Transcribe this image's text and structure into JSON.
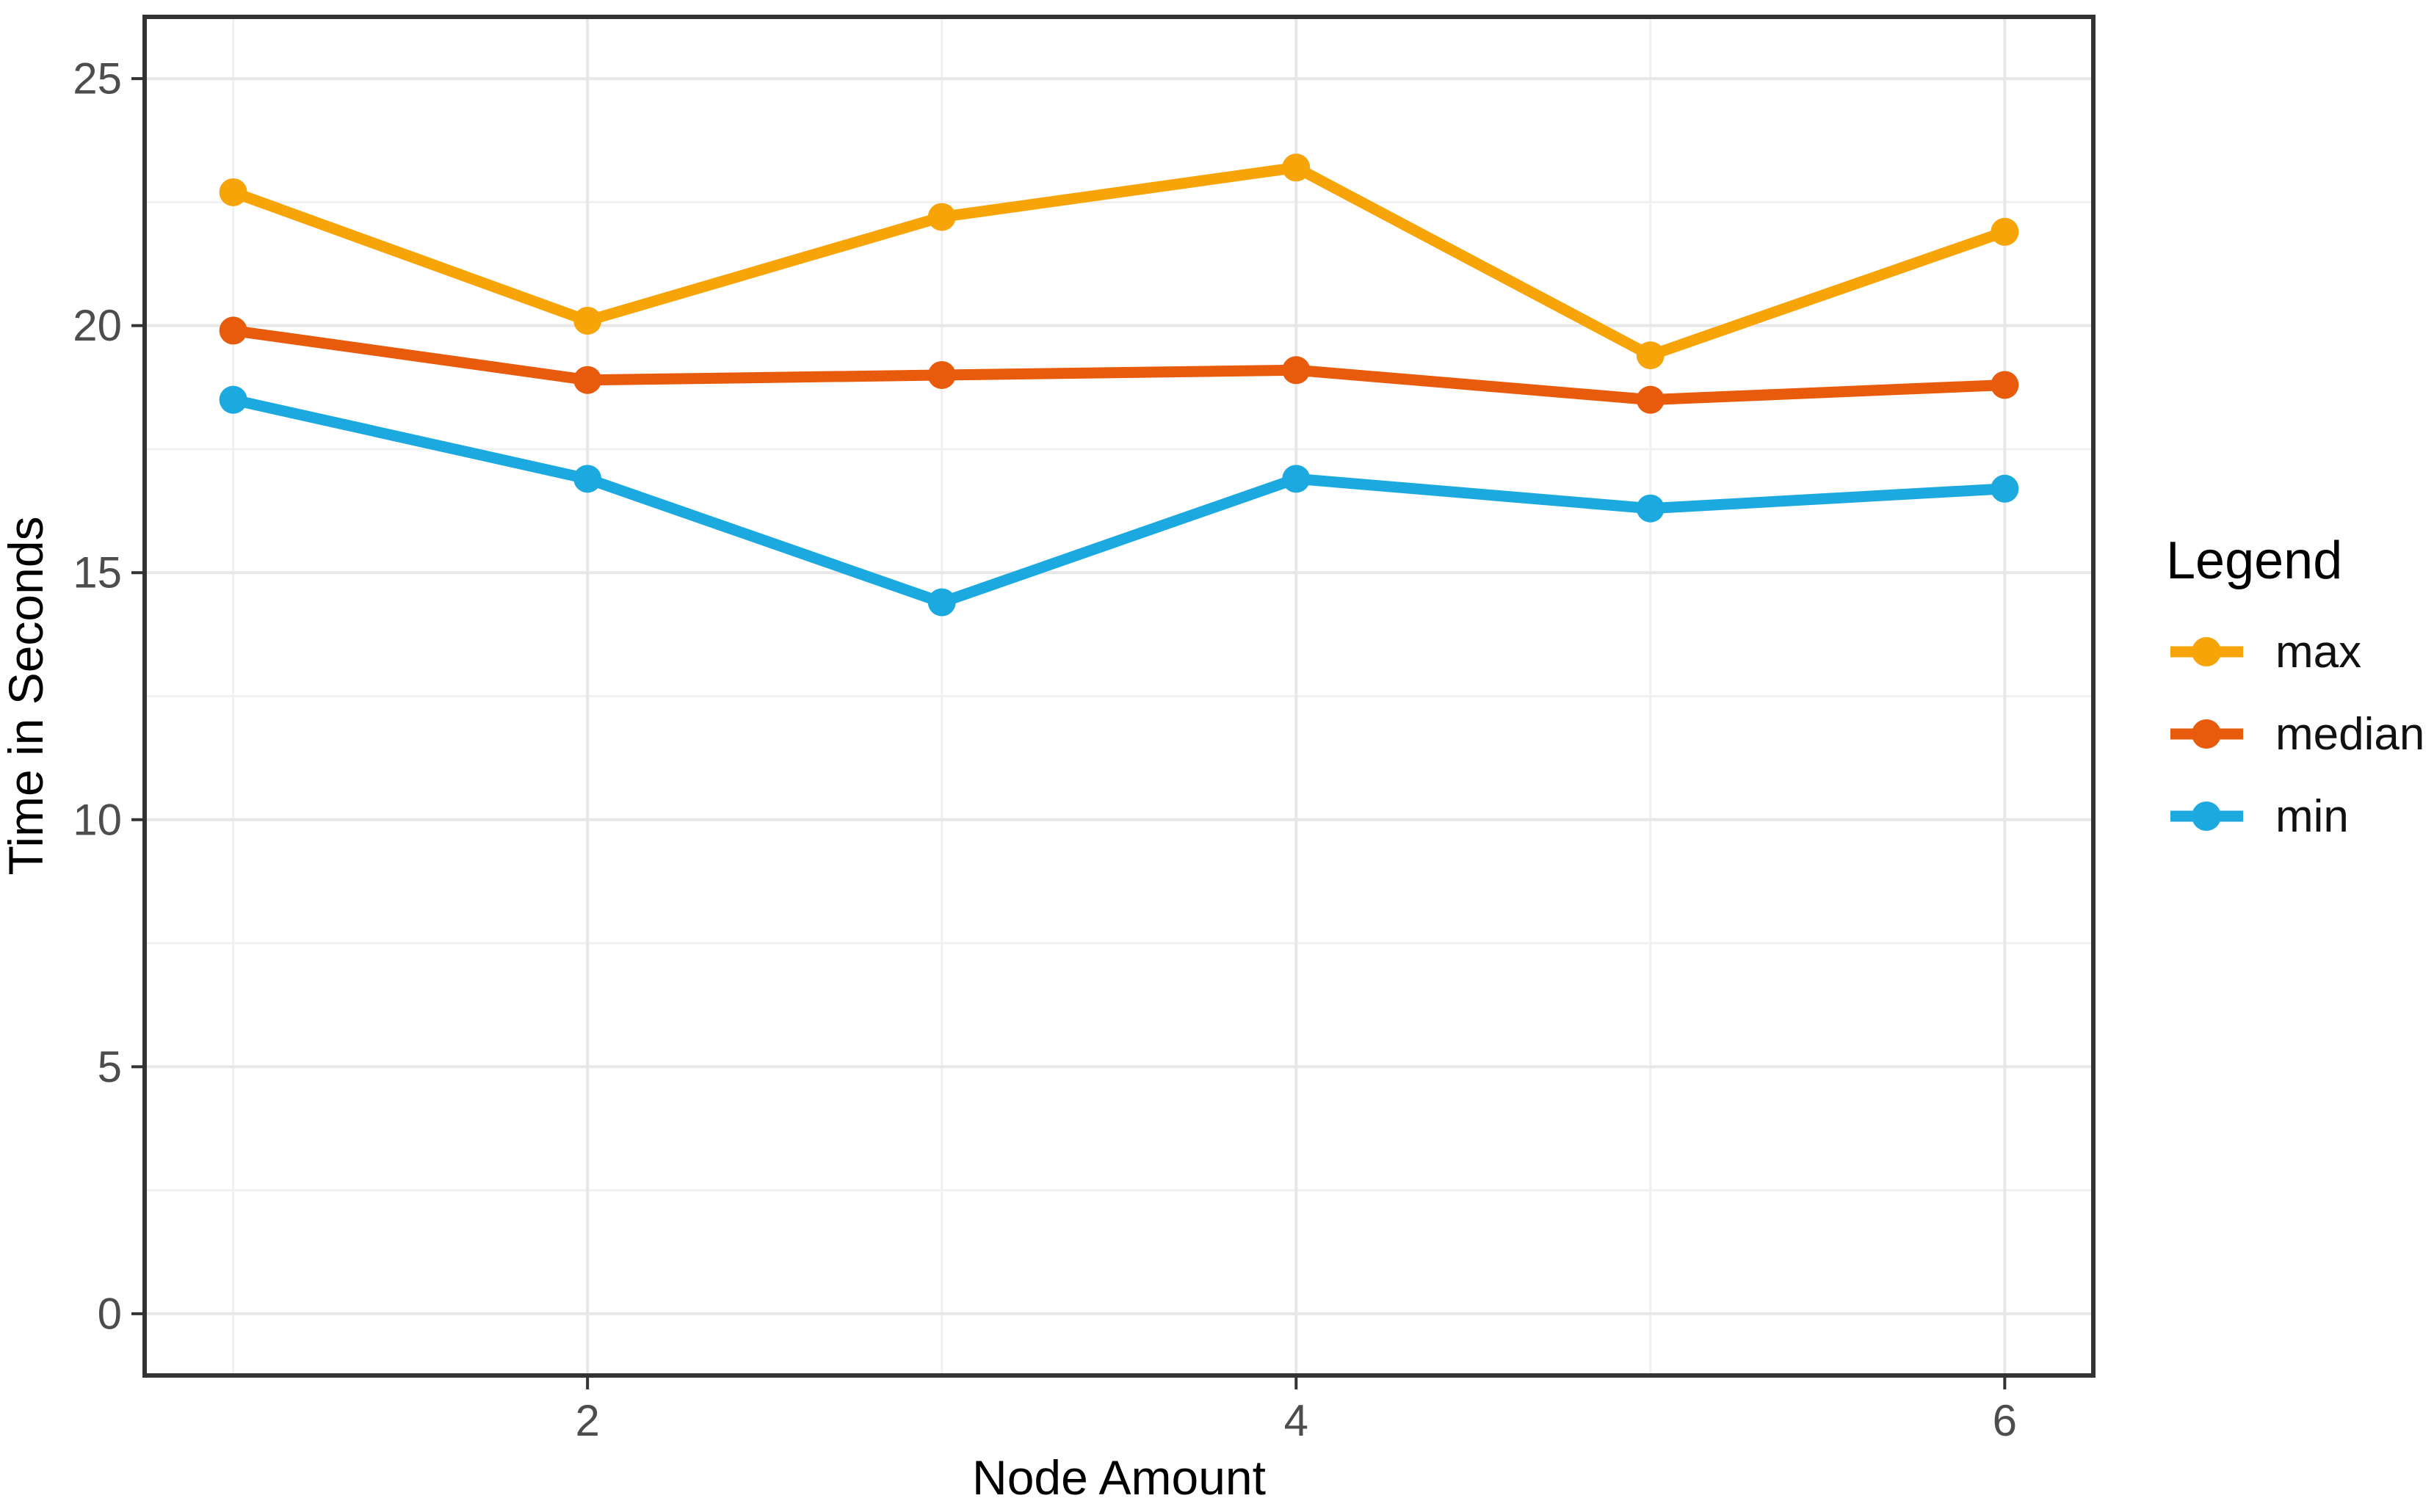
{
  "chart_data": {
    "type": "line",
    "title": "",
    "xlabel": "Node Amount",
    "ylabel": "Time in Seconds",
    "x": [
      1,
      2,
      3,
      4,
      5,
      6
    ],
    "series": [
      {
        "name": "max",
        "color": "#F7A408",
        "values": [
          22.7,
          20.1,
          22.2,
          23.2,
          19.4,
          21.9
        ]
      },
      {
        "name": "median",
        "color": "#E85A0C",
        "values": [
          19.9,
          18.9,
          19.0,
          19.1,
          18.5,
          18.8
        ]
      },
      {
        "name": "min",
        "color": "#1CA9E0",
        "values": [
          18.5,
          16.9,
          14.4,
          16.9,
          16.3,
          16.7
        ]
      }
    ],
    "xlim": [
      0.75,
      6.25
    ],
    "ylim": [
      -1.25,
      26.25
    ],
    "x_major_ticks": [
      2,
      4,
      6
    ],
    "x_minor_ticks": [
      1,
      3,
      5
    ],
    "y_major_ticks": [
      0,
      5,
      10,
      15,
      20,
      25
    ],
    "y_minor_ticks": [
      2.5,
      7.5,
      12.5,
      17.5,
      22.5
    ],
    "grid": true,
    "legend": {
      "title": "Legend",
      "position": "right"
    }
  },
  "styles": {
    "panel_border_color": "#333333",
    "tick_color": "#333333",
    "tick_label_color": "#4d4d4d",
    "axis_title_color": "#000000",
    "grid_major_color": "#e7e7e7",
    "grid_minor_color": "#f0f0f0",
    "background_color": "#ffffff"
  }
}
